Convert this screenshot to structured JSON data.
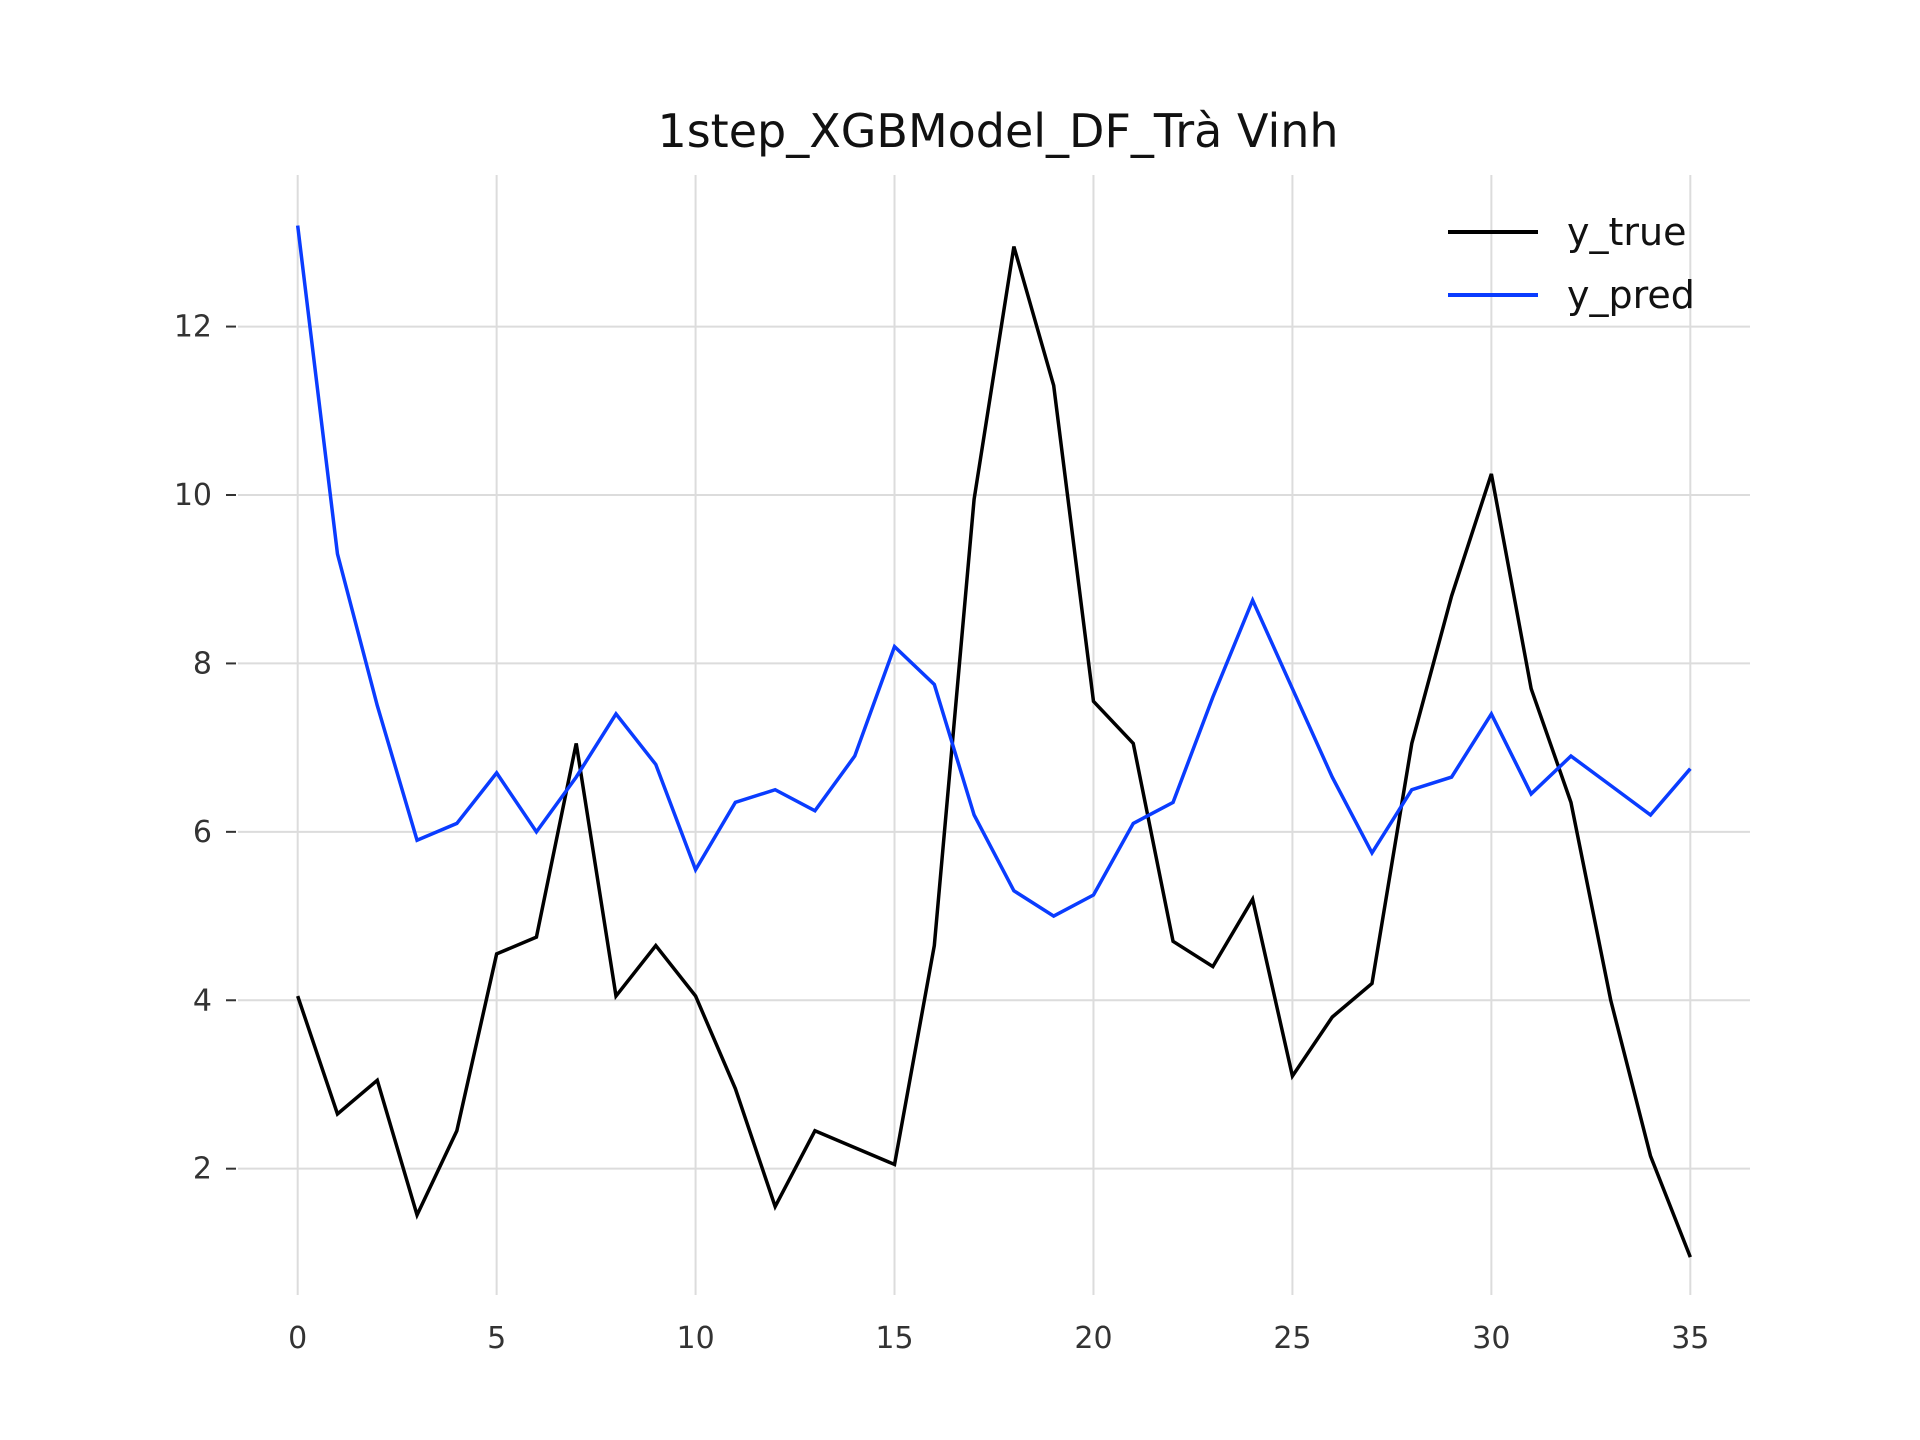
{
  "chart_data": {
    "type": "line",
    "title": "1step_XGBModel_DF_Trà Vinh",
    "xlabel": "",
    "ylabel": "",
    "xlim": [
      -1.5,
      36.5
    ],
    "ylim": [
      0.5,
      13.8
    ],
    "x_ticks": [
      0,
      5,
      10,
      15,
      20,
      25,
      30,
      35
    ],
    "y_ticks": [
      2,
      4,
      6,
      8,
      10,
      12
    ],
    "grid": true,
    "legend_position": "top-right",
    "x": [
      0,
      1,
      2,
      3,
      4,
      5,
      6,
      7,
      8,
      9,
      10,
      11,
      12,
      13,
      14,
      15,
      16,
      17,
      18,
      19,
      20,
      21,
      22,
      23,
      24,
      25,
      26,
      27,
      28,
      29,
      30,
      31,
      32,
      33,
      34,
      35
    ],
    "series": [
      {
        "name": "y_true",
        "color": "#000000",
        "values": [
          4.05,
          2.65,
          3.05,
          1.45,
          2.45,
          4.55,
          4.75,
          7.05,
          4.05,
          4.65,
          4.05,
          2.95,
          1.55,
          2.45,
          2.25,
          2.05,
          4.65,
          9.95,
          12.95,
          11.3,
          7.55,
          7.05,
          4.7,
          4.4,
          5.2,
          3.1,
          3.8,
          4.2,
          7.05,
          8.8,
          10.25,
          7.7,
          6.35,
          4.0,
          2.15,
          0.95
        ]
      },
      {
        "name": "y_pred",
        "color": "#0a3cff",
        "values": [
          13.2,
          9.3,
          7.5,
          5.9,
          6.1,
          6.7,
          6.0,
          6.65,
          7.4,
          6.8,
          5.55,
          6.35,
          6.5,
          6.25,
          6.9,
          8.2,
          7.75,
          6.2,
          5.3,
          5.0,
          5.25,
          6.1,
          6.35,
          7.6,
          8.75,
          7.7,
          6.65,
          5.75,
          6.5,
          6.65,
          7.4,
          6.45,
          6.9,
          6.55,
          6.2,
          6.75
        ]
      }
    ]
  }
}
